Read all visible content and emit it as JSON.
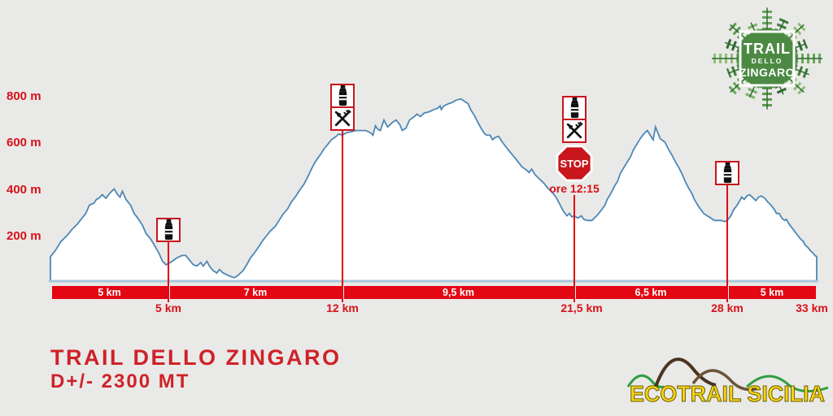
{
  "page": {
    "background": "#e9e9e7"
  },
  "colors": {
    "accent_red": "#e30613",
    "text_red": "#d81119",
    "title_red": "#cf2128",
    "stop_red": "#c8161c",
    "profile_line_blue": "#4d87b5",
    "baseline_blue": "#a9c7dc",
    "profile_fill": "#ffffff",
    "logo_green": "#4c8a44",
    "ecotrail_yellow": "#f6d515"
  },
  "wreath_logo": {
    "line1": "TRAIL",
    "line2": "DELLO",
    "line3": "ZINGARO"
  },
  "footer": {
    "title": "TRAIL DELLO ZINGARO",
    "subtitle": "D+/- 2300 MT"
  },
  "ecotrail": {
    "text": "ECOTRAIL SICILIA"
  },
  "chart_data": {
    "type": "area",
    "title": "Trail dello Zingaro elevation profile",
    "x_unit": "km",
    "y_unit": "m",
    "x_range": [
      0,
      33
    ],
    "y_range": [
      0,
      870
    ],
    "grid": false,
    "y_ticks": [
      {
        "label": "800 m",
        "value": 800
      },
      {
        "label": "600 m",
        "value": 600
      },
      {
        "label": "400 m",
        "value": 400
      },
      {
        "label": "200 m",
        "value": 200
      }
    ],
    "total_distance_label": "33 km",
    "segments": [
      {
        "label": "5 km",
        "from_km": 0,
        "to_km": 5
      },
      {
        "label": "7 km",
        "from_km": 5,
        "to_km": 12
      },
      {
        "label": "9,5 km",
        "from_km": 12,
        "to_km": 21.5
      },
      {
        "label": "6,5 km",
        "from_km": 21.5,
        "to_km": 28
      },
      {
        "label": "5 km",
        "from_km": 28,
        "to_km": 33
      }
    ],
    "distance_labels": [
      {
        "label": "5 km",
        "km": 5
      },
      {
        "label": "12 km",
        "km": 12
      },
      {
        "label": "21,5 km",
        "km": 21.5
      },
      {
        "label": "28 km",
        "km": 28
      },
      {
        "label": "33 km",
        "km": 33
      }
    ],
    "checkpoints": [
      {
        "km": 5,
        "services": [
          "water"
        ]
      },
      {
        "km": 12,
        "services": [
          "water",
          "food"
        ]
      },
      {
        "km": 21.5,
        "services": [
          "water",
          "food"
        ],
        "stop": true,
        "stop_label": "STOP",
        "cutoff": "ore 12:15"
      },
      {
        "km": 28,
        "services": [
          "water"
        ]
      }
    ],
    "profile": [
      [
        0,
        110
      ],
      [
        0.2,
        135
      ],
      [
        0.45,
        175
      ],
      [
        0.7,
        200
      ],
      [
        0.9,
        225
      ],
      [
        1.15,
        250
      ],
      [
        1.3,
        270
      ],
      [
        1.5,
        295
      ],
      [
        1.65,
        330
      ],
      [
        1.85,
        340
      ],
      [
        1.95,
        355
      ],
      [
        2.05,
        360
      ],
      [
        2.2,
        375
      ],
      [
        2.35,
        360
      ],
      [
        2.5,
        380
      ],
      [
        2.6,
        390
      ],
      [
        2.7,
        400
      ],
      [
        2.85,
        375
      ],
      [
        2.95,
        365
      ],
      [
        3.05,
        390
      ],
      [
        3.2,
        355
      ],
      [
        3.4,
        330
      ],
      [
        3.55,
        295
      ],
      [
        3.7,
        275
      ],
      [
        3.9,
        245
      ],
      [
        4.05,
        210
      ],
      [
        4.25,
        185
      ],
      [
        4.4,
        160
      ],
      [
        4.6,
        125
      ],
      [
        4.75,
        90
      ],
      [
        4.9,
        75
      ],
      [
        5,
        80
      ],
      [
        5.15,
        90
      ],
      [
        5.35,
        105
      ],
      [
        5.55,
        115
      ],
      [
        5.7,
        115
      ],
      [
        5.85,
        95
      ],
      [
        6,
        75
      ],
      [
        6.15,
        70
      ],
      [
        6.3,
        85
      ],
      [
        6.4,
        70
      ],
      [
        6.55,
        90
      ],
      [
        6.65,
        70
      ],
      [
        6.8,
        50
      ],
      [
        6.95,
        40
      ],
      [
        7.05,
        55
      ],
      [
        7.2,
        40
      ],
      [
        7.3,
        35
      ],
      [
        7.5,
        25
      ],
      [
        7.65,
        20
      ],
      [
        7.8,
        30
      ],
      [
        8,
        50
      ],
      [
        8.15,
        75
      ],
      [
        8.3,
        105
      ],
      [
        8.45,
        125
      ],
      [
        8.65,
        155
      ],
      [
        8.8,
        180
      ],
      [
        8.95,
        200
      ],
      [
        9.1,
        220
      ],
      [
        9.3,
        240
      ],
      [
        9.45,
        265
      ],
      [
        9.6,
        290
      ],
      [
        9.8,
        315
      ],
      [
        9.95,
        345
      ],
      [
        10.1,
        365
      ],
      [
        10.25,
        390
      ],
      [
        10.45,
        420
      ],
      [
        10.6,
        450
      ],
      [
        10.75,
        485
      ],
      [
        10.9,
        515
      ],
      [
        11.1,
        545
      ],
      [
        11.25,
        570
      ],
      [
        11.4,
        590
      ],
      [
        11.55,
        610
      ],
      [
        11.75,
        625
      ],
      [
        11.85,
        635
      ],
      [
        12,
        630
      ],
      [
        12.15,
        640
      ],
      [
        12.35,
        645
      ],
      [
        12.55,
        650
      ],
      [
        12.75,
        650
      ],
      [
        12.95,
        650
      ],
      [
        13.15,
        640
      ],
      [
        13.25,
        630
      ],
      [
        13.35,
        670
      ],
      [
        13.45,
        655
      ],
      [
        13.55,
        650
      ],
      [
        13.7,
        695
      ],
      [
        13.85,
        665
      ],
      [
        14.05,
        685
      ],
      [
        14.2,
        695
      ],
      [
        14.35,
        675
      ],
      [
        14.45,
        650
      ],
      [
        14.6,
        660
      ],
      [
        14.75,
        695
      ],
      [
        14.95,
        710
      ],
      [
        15.05,
        720
      ],
      [
        15.2,
        710
      ],
      [
        15.35,
        725
      ],
      [
        15.55,
        730
      ],
      [
        15.75,
        740
      ],
      [
        15.9,
        745
      ],
      [
        16,
        755
      ],
      [
        16.05,
        740
      ],
      [
        16.15,
        755
      ],
      [
        16.35,
        765
      ],
      [
        16.5,
        770
      ],
      [
        16.65,
        780
      ],
      [
        16.85,
        785
      ],
      [
        17,
        775
      ],
      [
        17.15,
        765
      ],
      [
        17.25,
        740
      ],
      [
        17.4,
        715
      ],
      [
        17.55,
        685
      ],
      [
        17.65,
        665
      ],
      [
        17.8,
        640
      ],
      [
        17.9,
        630
      ],
      [
        18.05,
        630
      ],
      [
        18.15,
        610
      ],
      [
        18.25,
        620
      ],
      [
        18.4,
        625
      ],
      [
        18.55,
        600
      ],
      [
        18.7,
        580
      ],
      [
        18.85,
        560
      ],
      [
        19.05,
        535
      ],
      [
        19.2,
        515
      ],
      [
        19.35,
        495
      ],
      [
        19.55,
        480
      ],
      [
        19.65,
        470
      ],
      [
        19.75,
        485
      ],
      [
        19.9,
        460
      ],
      [
        20.05,
        445
      ],
      [
        20.25,
        425
      ],
      [
        20.4,
        405
      ],
      [
        20.55,
        390
      ],
      [
        20.75,
        365
      ],
      [
        20.9,
        335
      ],
      [
        21.05,
        305
      ],
      [
        21.2,
        285
      ],
      [
        21.3,
        295
      ],
      [
        21.4,
        280
      ],
      [
        21.5,
        285
      ],
      [
        21.65,
        275
      ],
      [
        21.8,
        285
      ],
      [
        21.9,
        270
      ],
      [
        22.05,
        265
      ],
      [
        22.25,
        265
      ],
      [
        22.35,
        275
      ],
      [
        22.5,
        290
      ],
      [
        22.65,
        310
      ],
      [
        22.8,
        330
      ],
      [
        22.9,
        355
      ],
      [
        23.05,
        380
      ],
      [
        23.2,
        410
      ],
      [
        23.35,
        435
      ],
      [
        23.45,
        465
      ],
      [
        23.6,
        490
      ],
      [
        23.75,
        515
      ],
      [
        23.9,
        540
      ],
      [
        24,
        565
      ],
      [
        24.15,
        590
      ],
      [
        24.3,
        615
      ],
      [
        24.45,
        635
      ],
      [
        24.6,
        650
      ],
      [
        24.85,
        610
      ],
      [
        24.95,
        665
      ],
      [
        25.15,
        615
      ],
      [
        25.35,
        600
      ],
      [
        25.5,
        570
      ],
      [
        25.65,
        545
      ],
      [
        25.8,
        515
      ],
      [
        25.95,
        490
      ],
      [
        26.1,
        460
      ],
      [
        26.2,
        435
      ],
      [
        26.35,
        405
      ],
      [
        26.5,
        380
      ],
      [
        26.6,
        355
      ],
      [
        26.75,
        330
      ],
      [
        26.85,
        315
      ],
      [
        27,
        295
      ],
      [
        27.15,
        285
      ],
      [
        27.3,
        275
      ],
      [
        27.45,
        265
      ],
      [
        27.6,
        265
      ],
      [
        27.75,
        265
      ],
      [
        27.9,
        260
      ],
      [
        28,
        265
      ],
      [
        28.2,
        285
      ],
      [
        28.35,
        310
      ],
      [
        28.55,
        330
      ],
      [
        28.7,
        350
      ],
      [
        28.8,
        365
      ],
      [
        28.95,
        355
      ],
      [
        29.1,
        370
      ],
      [
        29.25,
        375
      ],
      [
        29.4,
        365
      ],
      [
        29.6,
        350
      ],
      [
        29.75,
        365
      ],
      [
        29.9,
        370
      ],
      [
        30.1,
        360
      ],
      [
        30.25,
        345
      ],
      [
        30.45,
        330
      ],
      [
        30.65,
        310
      ],
      [
        30.75,
        295
      ],
      [
        30.9,
        295
      ],
      [
        31.05,
        275
      ],
      [
        31.2,
        265
      ],
      [
        31.3,
        270
      ],
      [
        31.45,
        250
      ],
      [
        31.65,
        230
      ],
      [
        31.8,
        215
      ],
      [
        31.95,
        200
      ],
      [
        32.1,
        185
      ],
      [
        32.25,
        175
      ],
      [
        32.35,
        160
      ],
      [
        32.5,
        150
      ],
      [
        32.65,
        135
      ],
      [
        32.8,
        125
      ],
      [
        32.9,
        115
      ],
      [
        33,
        110
      ]
    ]
  }
}
